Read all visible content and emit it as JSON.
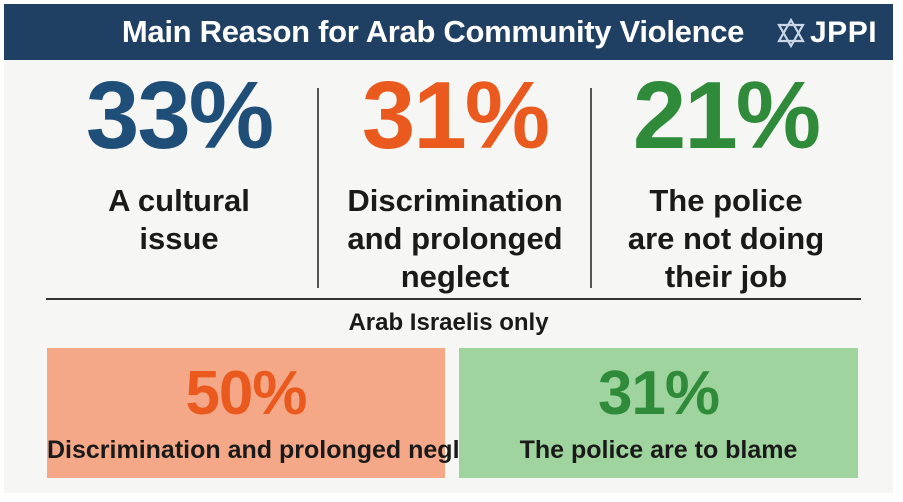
{
  "title": "Main Reason for Arab Community Violence",
  "logo": {
    "text": "JPPI",
    "icon": "star-of-david-logo-icon"
  },
  "colors": {
    "header_bg": "#1f3f63",
    "blue": "#1f4f78",
    "orange": "#ea5a1e",
    "green": "#2f8a3a",
    "orange_box": "#f4a888",
    "green_box": "#9fd49e"
  },
  "chart_data": [
    {
      "type": "table",
      "title": "Main Reason for Arab Community Violence",
      "categories": [
        "A cultural issue",
        "Discrimination and prolonged neglect",
        "The police are not doing their job"
      ],
      "values": [
        33,
        31,
        21
      ],
      "unit": "%"
    },
    {
      "type": "table",
      "title": "Arab Israelis only",
      "categories": [
        "Discrimination and prolonged neglect",
        "The police are to blame"
      ],
      "values": [
        50,
        31
      ],
      "unit": "%"
    }
  ],
  "top_stats": [
    {
      "pct": "33%",
      "label_lines": [
        "A cultural",
        "issue"
      ]
    },
    {
      "pct": "31%",
      "label_lines": [
        "Discrimination",
        "and prolonged",
        "neglect"
      ]
    },
    {
      "pct": "21%",
      "label_lines": [
        "The police",
        "are not doing",
        "their job"
      ]
    }
  ],
  "subhead": "Arab Israelis only",
  "bottom_stats": [
    {
      "pct": "50%",
      "label": "Discrimination and prolonged neglect"
    },
    {
      "pct": "31%",
      "label": "The police are to blame"
    }
  ]
}
